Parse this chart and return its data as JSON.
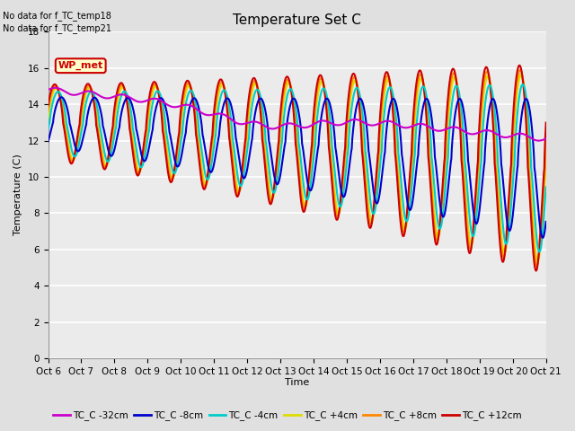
{
  "title": "Temperature Set C",
  "ylabel": "Temperature (C)",
  "xlabel": "Time",
  "annotation_lines": [
    "No data for f_TC_temp18",
    "No data for f_TC_temp21"
  ],
  "wp_met_label": "WP_met",
  "wp_met_color": "#cc0000",
  "wp_met_bg": "#ffffcc",
  "legend_entries": [
    {
      "label": "TC_C -32cm",
      "color": "#cc00cc",
      "lw": 1.5
    },
    {
      "label": "TC_C -8cm",
      "color": "#0000cc",
      "lw": 1.5
    },
    {
      "label": "TC_C -4cm",
      "color": "#00cccc",
      "lw": 1.5
    },
    {
      "label": "TC_C +4cm",
      "color": "#dddd00",
      "lw": 2.0
    },
    {
      "label": "TC_C +8cm",
      "color": "#ff8800",
      "lw": 1.5
    },
    {
      "label": "TC_C +12cm",
      "color": "#cc0000",
      "lw": 1.5
    }
  ],
  "xtick_labels": [
    "Oct 6",
    "Oct 7",
    "Oct 8",
    "Oct 9",
    "Oct 10",
    "Oct 11",
    "Oct 12",
    "Oct 13",
    "Oct 14",
    "Oct 15",
    "Oct 16",
    "Oct 17",
    "Oct 18",
    "Oct 19",
    "Oct 20",
    "Oct 21"
  ],
  "ylim": [
    0,
    18
  ],
  "yticks": [
    0,
    2,
    4,
    6,
    8,
    10,
    12,
    14,
    16,
    18
  ],
  "bg_color": "#e0e0e0",
  "plot_bg_color": "#ebebeb",
  "grid_color": "#ffffff",
  "title_fontsize": 11,
  "label_fontsize": 8,
  "tick_fontsize": 7.5
}
